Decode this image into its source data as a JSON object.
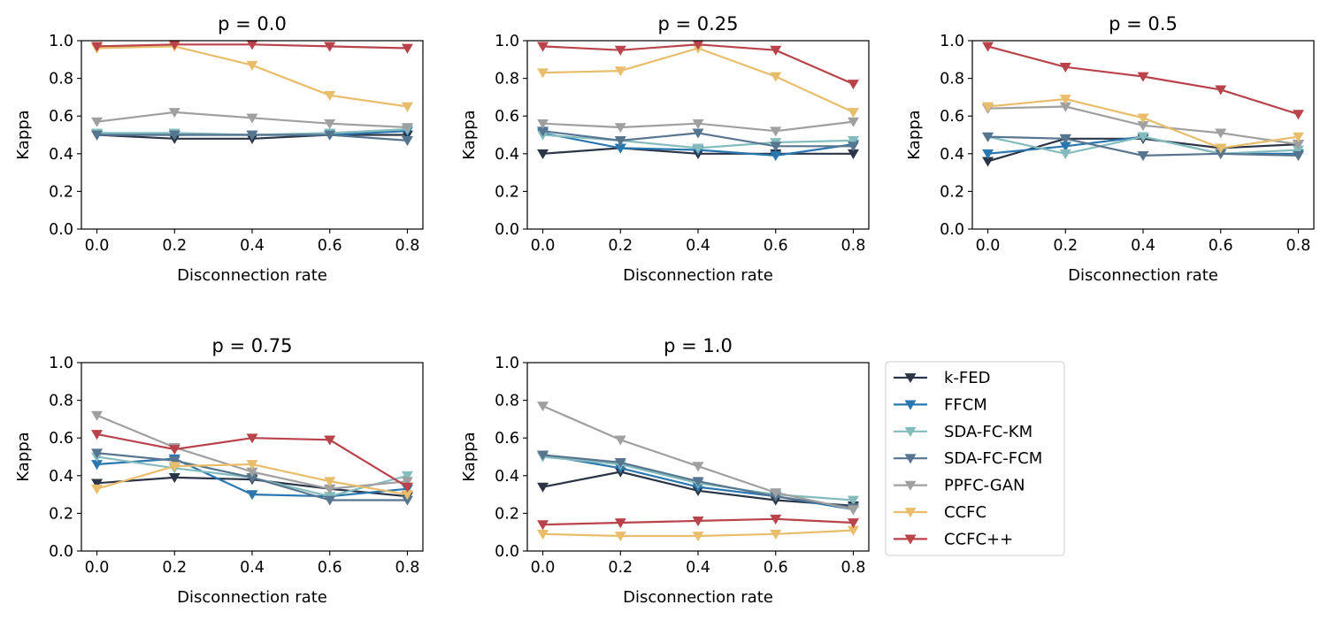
{
  "chart_data": {
    "type": "line",
    "shared": {
      "xlabel": "Disconnection rate",
      "ylabel": "Kappa",
      "x": [
        0.0,
        0.2,
        0.4,
        0.6,
        0.8
      ],
      "x_ticks": [
        "0.0",
        "0.2",
        "0.4",
        "0.6",
        "0.8"
      ],
      "y_ticks": [
        "0.0",
        "0.2",
        "0.4",
        "0.6",
        "0.8",
        "1.0"
      ],
      "ylim": [
        0,
        1.0
      ],
      "xlim": [
        -0.04,
        0.84
      ],
      "marker": "triangle-down",
      "grid": false
    },
    "series_styles": [
      {
        "name": "k-FED",
        "color": "#2b3547"
      },
      {
        "name": "FFCM",
        "color": "#2a77b0"
      },
      {
        "name": "SDA-FC-KM",
        "color": "#84bcbd"
      },
      {
        "name": "SDA-FC-FCM",
        "color": "#58758f"
      },
      {
        "name": "PPFC-GAN",
        "color": "#a0a0a0"
      },
      {
        "name": "CCFC",
        "color": "#e8bd6b"
      },
      {
        "name": "CCFC++",
        "color": "#b9434b"
      }
    ],
    "legend": {
      "placement": "right-of-last-panel",
      "entries": [
        "k-FED",
        "FFCM",
        "SDA-FC-KM",
        "SDA-FC-FCM",
        "PPFC-GAN",
        "CCFC",
        "CCFC++"
      ]
    },
    "panels": [
      {
        "title": "p = 0.0",
        "series": [
          {
            "name": "k-FED",
            "values": [
              0.5,
              0.48,
              0.48,
              0.5,
              0.5
            ]
          },
          {
            "name": "FFCM",
            "values": [
              0.5,
              0.5,
              0.5,
              0.5,
              0.52
            ]
          },
          {
            "name": "SDA-FC-KM",
            "values": [
              0.51,
              0.51,
              0.5,
              0.51,
              0.53
            ]
          },
          {
            "name": "SDA-FC-FCM",
            "values": [
              0.5,
              0.5,
              0.5,
              0.5,
              0.47
            ]
          },
          {
            "name": "PPFC-GAN",
            "values": [
              0.57,
              0.62,
              0.59,
              0.56,
              0.54
            ]
          },
          {
            "name": "CCFC",
            "values": [
              0.96,
              0.97,
              0.87,
              0.71,
              0.65
            ]
          },
          {
            "name": "CCFC++",
            "values": [
              0.97,
              0.98,
              0.98,
              0.97,
              0.96
            ]
          }
        ]
      },
      {
        "title": "p = 0.25",
        "series": [
          {
            "name": "k-FED",
            "values": [
              0.4,
              0.43,
              0.4,
              0.4,
              0.4
            ]
          },
          {
            "name": "FFCM",
            "values": [
              0.51,
              0.43,
              0.42,
              0.39,
              0.45
            ]
          },
          {
            "name": "SDA-FC-KM",
            "values": [
              0.5,
              0.47,
              0.43,
              0.46,
              0.47
            ]
          },
          {
            "name": "SDA-FC-FCM",
            "values": [
              0.52,
              0.47,
              0.51,
              0.44,
              0.44
            ]
          },
          {
            "name": "PPFC-GAN",
            "values": [
              0.56,
              0.54,
              0.56,
              0.52,
              0.57
            ]
          },
          {
            "name": "CCFC",
            "values": [
              0.83,
              0.84,
              0.96,
              0.81,
              0.62
            ]
          },
          {
            "name": "CCFC++",
            "values": [
              0.97,
              0.95,
              0.98,
              0.95,
              0.77
            ]
          }
        ]
      },
      {
        "title": "p = 0.5",
        "series": [
          {
            "name": "k-FED",
            "values": [
              0.36,
              0.48,
              0.48,
              0.43,
              0.45
            ]
          },
          {
            "name": "FFCM",
            "values": [
              0.4,
              0.44,
              0.49,
              0.4,
              0.4
            ]
          },
          {
            "name": "SDA-FC-KM",
            "values": [
              0.49,
              0.4,
              0.49,
              0.4,
              0.42
            ]
          },
          {
            "name": "SDA-FC-FCM",
            "values": [
              0.49,
              0.48,
              0.39,
              0.4,
              0.39
            ]
          },
          {
            "name": "PPFC-GAN",
            "values": [
              0.64,
              0.65,
              0.55,
              0.51,
              0.45
            ]
          },
          {
            "name": "CCFC",
            "values": [
              0.65,
              0.69,
              0.59,
              0.43,
              0.49
            ]
          },
          {
            "name": "CCFC++",
            "values": [
              0.97,
              0.86,
              0.81,
              0.74,
              0.61
            ]
          }
        ]
      },
      {
        "title": "p = 0.75",
        "series": [
          {
            "name": "k-FED",
            "values": [
              0.36,
              0.39,
              0.38,
              0.33,
              0.29
            ]
          },
          {
            "name": "FFCM",
            "values": [
              0.46,
              0.49,
              0.3,
              0.29,
              0.33
            ]
          },
          {
            "name": "SDA-FC-KM",
            "values": [
              0.5,
              0.44,
              0.39,
              0.29,
              0.4
            ]
          },
          {
            "name": "SDA-FC-FCM",
            "values": [
              0.52,
              0.48,
              0.39,
              0.27,
              0.27
            ]
          },
          {
            "name": "PPFC-GAN",
            "values": [
              0.72,
              0.55,
              0.42,
              0.33,
              0.37
            ]
          },
          {
            "name": "CCFC",
            "values": [
              0.33,
              0.45,
              0.46,
              0.37,
              0.3
            ]
          },
          {
            "name": "CCFC++",
            "values": [
              0.62,
              0.54,
              0.6,
              0.59,
              0.34
            ]
          }
        ]
      },
      {
        "title": "p = 1.0",
        "series": [
          {
            "name": "k-FED",
            "values": [
              0.34,
              0.42,
              0.32,
              0.27,
              0.24
            ]
          },
          {
            "name": "FFCM",
            "values": [
              0.51,
              0.44,
              0.34,
              0.29,
              0.22
            ]
          },
          {
            "name": "SDA-FC-KM",
            "values": [
              0.5,
              0.46,
              0.36,
              0.3,
              0.27
            ]
          },
          {
            "name": "SDA-FC-FCM",
            "values": [
              0.51,
              0.47,
              0.37,
              0.29,
              0.23
            ]
          },
          {
            "name": "PPFC-GAN",
            "values": [
              0.77,
              0.59,
              0.45,
              0.31,
              0.22
            ]
          },
          {
            "name": "CCFC",
            "values": [
              0.09,
              0.08,
              0.08,
              0.09,
              0.11
            ]
          },
          {
            "name": "CCFC++",
            "values": [
              0.14,
              0.15,
              0.16,
              0.17,
              0.15
            ]
          }
        ]
      }
    ]
  }
}
